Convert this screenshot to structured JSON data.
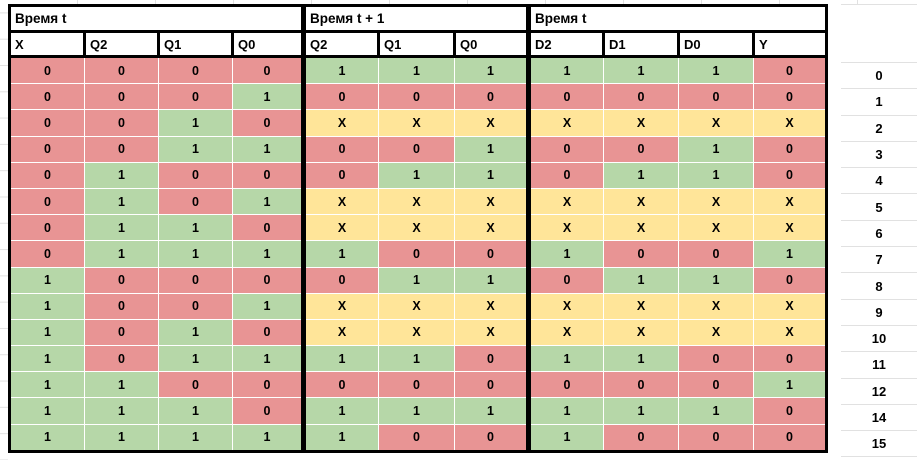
{
  "palette": {
    "zero_fill": "#e89494",
    "one_fill": "#b6d7a8",
    "dontcare_fill": "#ffe599",
    "table_border": "#000000",
    "gridline": "#e1e1e1"
  },
  "table": {
    "sections": [
      {
        "title": "Время t",
        "columns": [
          "X",
          "Q2",
          "Q1",
          "Q0"
        ]
      },
      {
        "title": "Время t + 1",
        "columns": [
          "Q2",
          "Q1",
          "Q0"
        ]
      },
      {
        "title": "Время t",
        "columns": [
          "D2",
          "D1",
          "D0",
          "Y"
        ]
      }
    ],
    "rows": [
      {
        "index": "0",
        "cells": [
          "0",
          "0",
          "0",
          "0",
          "1",
          "1",
          "1",
          "1",
          "1",
          "1",
          "0"
        ]
      },
      {
        "index": "1",
        "cells": [
          "0",
          "0",
          "0",
          "1",
          "0",
          "0",
          "0",
          "0",
          "0",
          "0",
          "0"
        ]
      },
      {
        "index": "2",
        "cells": [
          "0",
          "0",
          "1",
          "0",
          "X",
          "X",
          "X",
          "X",
          "X",
          "X",
          "X"
        ]
      },
      {
        "index": "3",
        "cells": [
          "0",
          "0",
          "1",
          "1",
          "0",
          "0",
          "1",
          "0",
          "0",
          "1",
          "0"
        ]
      },
      {
        "index": "4",
        "cells": [
          "0",
          "1",
          "0",
          "0",
          "0",
          "1",
          "1",
          "0",
          "1",
          "1",
          "0"
        ]
      },
      {
        "index": "5",
        "cells": [
          "0",
          "1",
          "0",
          "1",
          "X",
          "X",
          "X",
          "X",
          "X",
          "X",
          "X"
        ]
      },
      {
        "index": "6",
        "cells": [
          "0",
          "1",
          "1",
          "0",
          "X",
          "X",
          "X",
          "X",
          "X",
          "X",
          "X"
        ]
      },
      {
        "index": "7",
        "cells": [
          "0",
          "1",
          "1",
          "1",
          "1",
          "0",
          "0",
          "1",
          "0",
          "0",
          "1"
        ]
      },
      {
        "index": "8",
        "cells": [
          "1",
          "0",
          "0",
          "0",
          "0",
          "1",
          "1",
          "0",
          "1",
          "1",
          "0"
        ]
      },
      {
        "index": "9",
        "cells": [
          "1",
          "0",
          "0",
          "1",
          "X",
          "X",
          "X",
          "X",
          "X",
          "X",
          "X"
        ]
      },
      {
        "index": "10",
        "cells": [
          "1",
          "0",
          "1",
          "0",
          "X",
          "X",
          "X",
          "X",
          "X",
          "X",
          "X"
        ]
      },
      {
        "index": "11",
        "cells": [
          "1",
          "0",
          "1",
          "1",
          "1",
          "1",
          "0",
          "1",
          "1",
          "0",
          "0"
        ]
      },
      {
        "index": "12",
        "cells": [
          "1",
          "1",
          "0",
          "0",
          "0",
          "0",
          "0",
          "0",
          "0",
          "0",
          "1"
        ]
      },
      {
        "index": "14",
        "cells": [
          "1",
          "1",
          "1",
          "0",
          "1",
          "1",
          "1",
          "1",
          "1",
          "1",
          "0"
        ]
      },
      {
        "index": "15",
        "cells": [
          "1",
          "1",
          "1",
          "1",
          "1",
          "0",
          "0",
          "1",
          "0",
          "0",
          "0"
        ]
      }
    ]
  }
}
